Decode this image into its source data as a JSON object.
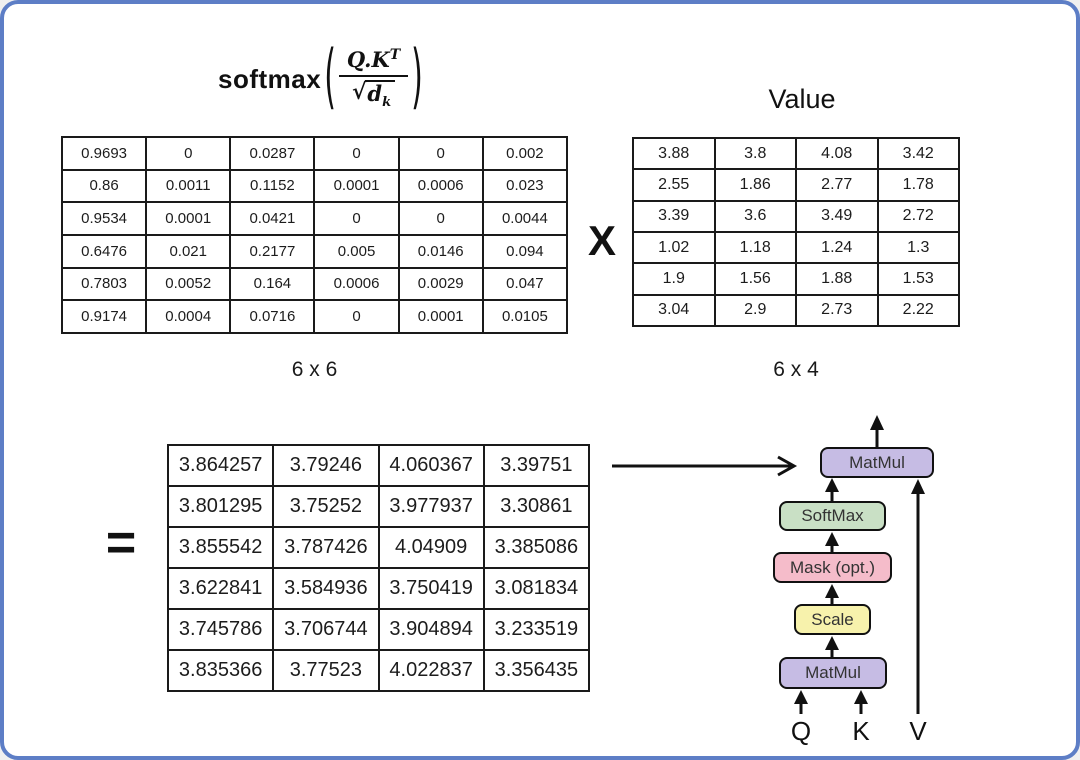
{
  "frame": {
    "border_color": "#5d7ec6",
    "background": "#ffffff"
  },
  "formula": {
    "function": "softmax",
    "open_paren": "(",
    "numerator_base": "Q.K",
    "numerator_exp": "T",
    "radical": "√",
    "radicand_base": "d",
    "radicand_sub": "k",
    "close_paren": ")"
  },
  "softmax_matrix": {
    "dimension_label": "6 x 6",
    "rows": [
      [
        "0.9693",
        "0",
        "0.0287",
        "0",
        "0",
        "0.002"
      ],
      [
        "0.86",
        "0.0011",
        "0.1152",
        "0.0001",
        "0.0006",
        "0.023"
      ],
      [
        "0.9534",
        "0.0001",
        "0.0421",
        "0",
        "0",
        "0.0044"
      ],
      [
        "0.6476",
        "0.021",
        "0.2177",
        "0.005",
        "0.0146",
        "0.094"
      ],
      [
        "0.7803",
        "0.0052",
        "0.164",
        "0.0006",
        "0.0029",
        "0.047"
      ],
      [
        "0.9174",
        "0.0004",
        "0.0716",
        "0",
        "0.0001",
        "0.0105"
      ]
    ]
  },
  "multiply_operator": "X",
  "value_matrix": {
    "title": "Value",
    "dimension_label": "6 x 4",
    "rows": [
      [
        "3.88",
        "3.8",
        "4.08",
        "3.42"
      ],
      [
        "2.55",
        "1.86",
        "2.77",
        "1.78"
      ],
      [
        "3.39",
        "3.6",
        "3.49",
        "2.72"
      ],
      [
        "1.02",
        "1.18",
        "1.24",
        "1.3"
      ],
      [
        "1.9",
        "1.56",
        "1.88",
        "1.53"
      ],
      [
        "3.04",
        "2.9",
        "2.73",
        "2.22"
      ]
    ]
  },
  "equals_operator": "=",
  "result_matrix": {
    "rows": [
      [
        "3.864257",
        "3.79246",
        "4.060367",
        "3.39751"
      ],
      [
        "3.801295",
        "3.75252",
        "3.977937",
        "3.30861"
      ],
      [
        "3.855542",
        "3.787426",
        "4.04909",
        "3.385086"
      ],
      [
        "3.622841",
        "3.584936",
        "3.750419",
        "3.081834"
      ],
      [
        "3.745786",
        "3.706744",
        "3.904894",
        "3.233519"
      ],
      [
        "3.835366",
        "3.77523",
        "4.022837",
        "3.356435"
      ]
    ]
  },
  "attention_diagram": {
    "boxes": [
      {
        "label": "MatMul",
        "color": "#c6bce4"
      },
      {
        "label": "SoftMax",
        "color": "#c9e0c5"
      },
      {
        "label": "Mask (opt.)",
        "color": "#f5bcca"
      },
      {
        "label": "Scale",
        "color": "#f7f2ac"
      },
      {
        "label": "MatMul",
        "color": "#c6bce4"
      }
    ],
    "inputs": {
      "q": "Q",
      "k": "K",
      "v": "V"
    },
    "line_color": "#111111"
  }
}
